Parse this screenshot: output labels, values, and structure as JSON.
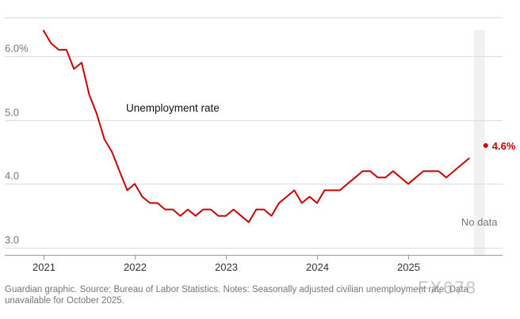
{
  "chart_data": {
    "type": "line",
    "title": "",
    "series_label": "Unemployment rate",
    "end_value_label": "4.6%",
    "end_value": 4.6,
    "end_value_x": 2025.85,
    "no_data_label": "No data",
    "no_data_x": [
      2025.72,
      2025.84
    ],
    "y_ticks": [
      {
        "value": 6.0,
        "label": "6.0%"
      },
      {
        "value": 5.0,
        "label": "5.0"
      },
      {
        "value": 4.0,
        "label": "4.0"
      },
      {
        "value": 3.0,
        "label": "3.0"
      }
    ],
    "x_ticks": [
      {
        "value": 2021,
        "label": "2021"
      },
      {
        "value": 2022,
        "label": "2022"
      },
      {
        "value": 2023,
        "label": "2023"
      },
      {
        "value": 2024,
        "label": "2024"
      },
      {
        "value": 2025,
        "label": "2025"
      }
    ],
    "xlim": [
      2020.6,
      2026.05
    ],
    "ylim": [
      2.92,
      6.7
    ],
    "color": "#c70000",
    "series": [
      {
        "name": "Unemployment rate",
        "x": [
          2021.0,
          2021.083,
          2021.167,
          2021.25,
          2021.333,
          2021.417,
          2021.5,
          2021.583,
          2021.667,
          2021.75,
          2021.833,
          2021.917,
          2022.0,
          2022.083,
          2022.167,
          2022.25,
          2022.333,
          2022.417,
          2022.5,
          2022.583,
          2022.667,
          2022.75,
          2022.833,
          2022.917,
          2023.0,
          2023.083,
          2023.167,
          2023.25,
          2023.333,
          2023.417,
          2023.5,
          2023.583,
          2023.667,
          2023.75,
          2023.833,
          2023.917,
          2024.0,
          2024.083,
          2024.167,
          2024.25,
          2024.333,
          2024.417,
          2024.5,
          2024.583,
          2024.667,
          2024.75,
          2024.833,
          2024.917,
          2025.0,
          2025.083,
          2025.167,
          2025.25,
          2025.333,
          2025.417,
          2025.5,
          2025.583,
          2025.667
        ],
        "values": [
          6.4,
          6.2,
          6.1,
          6.1,
          5.8,
          5.9,
          5.4,
          5.1,
          4.7,
          4.5,
          4.2,
          3.9,
          4.0,
          3.8,
          3.7,
          3.7,
          3.6,
          3.6,
          3.5,
          3.6,
          3.5,
          3.6,
          3.6,
          3.5,
          3.5,
          3.6,
          3.5,
          3.4,
          3.6,
          3.6,
          3.5,
          3.7,
          3.8,
          3.9,
          3.7,
          3.8,
          3.7,
          3.9,
          3.9,
          3.9,
          4.0,
          4.1,
          4.2,
          4.2,
          4.1,
          4.1,
          4.2,
          4.1,
          4.0,
          4.1,
          4.2,
          4.2,
          4.2,
          4.1,
          4.2,
          4.3,
          4.4
        ]
      }
    ]
  },
  "footer": {
    "caption": "Guardian graphic. Source: Bureau of Labor Statistics. Notes: Seasonally adjusted civilian unemployment rate. Data unavailable for October 2025."
  },
  "watermark": "FX678"
}
